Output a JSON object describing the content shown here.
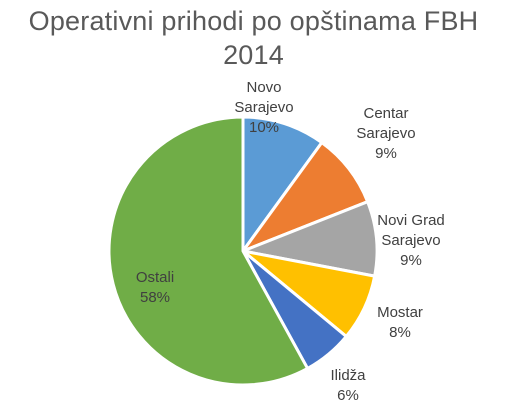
{
  "chart_data": {
    "type": "pie",
    "title_lines": [
      "Operativni prihodi po opštinama FBH",
      "2014"
    ],
    "slices": [
      {
        "label_lines": [
          "Novo",
          "Sarajevo"
        ],
        "value": 10,
        "value_label": "10%",
        "color": "#5B9BD5"
      },
      {
        "label_lines": [
          "Centar",
          "Sarajevo"
        ],
        "value": 9,
        "value_label": "9%",
        "color": "#ED7D31"
      },
      {
        "label_lines": [
          "Novi Grad",
          "Sarajevo"
        ],
        "value": 9,
        "value_label": "9%",
        "color": "#A5A5A5"
      },
      {
        "label_lines": [
          "Mostar"
        ],
        "value": 8,
        "value_label": "8%",
        "color": "#FFC000"
      },
      {
        "label_lines": [
          "Ilidža"
        ],
        "value": 6,
        "value_label": "6%",
        "color": "#4472C4"
      },
      {
        "label_lines": [
          "Ostali"
        ],
        "value": 58,
        "value_label": "58%",
        "color": "#70AD47"
      }
    ],
    "start_angle_deg": 0,
    "direction": "clockwise",
    "legend": "none"
  }
}
